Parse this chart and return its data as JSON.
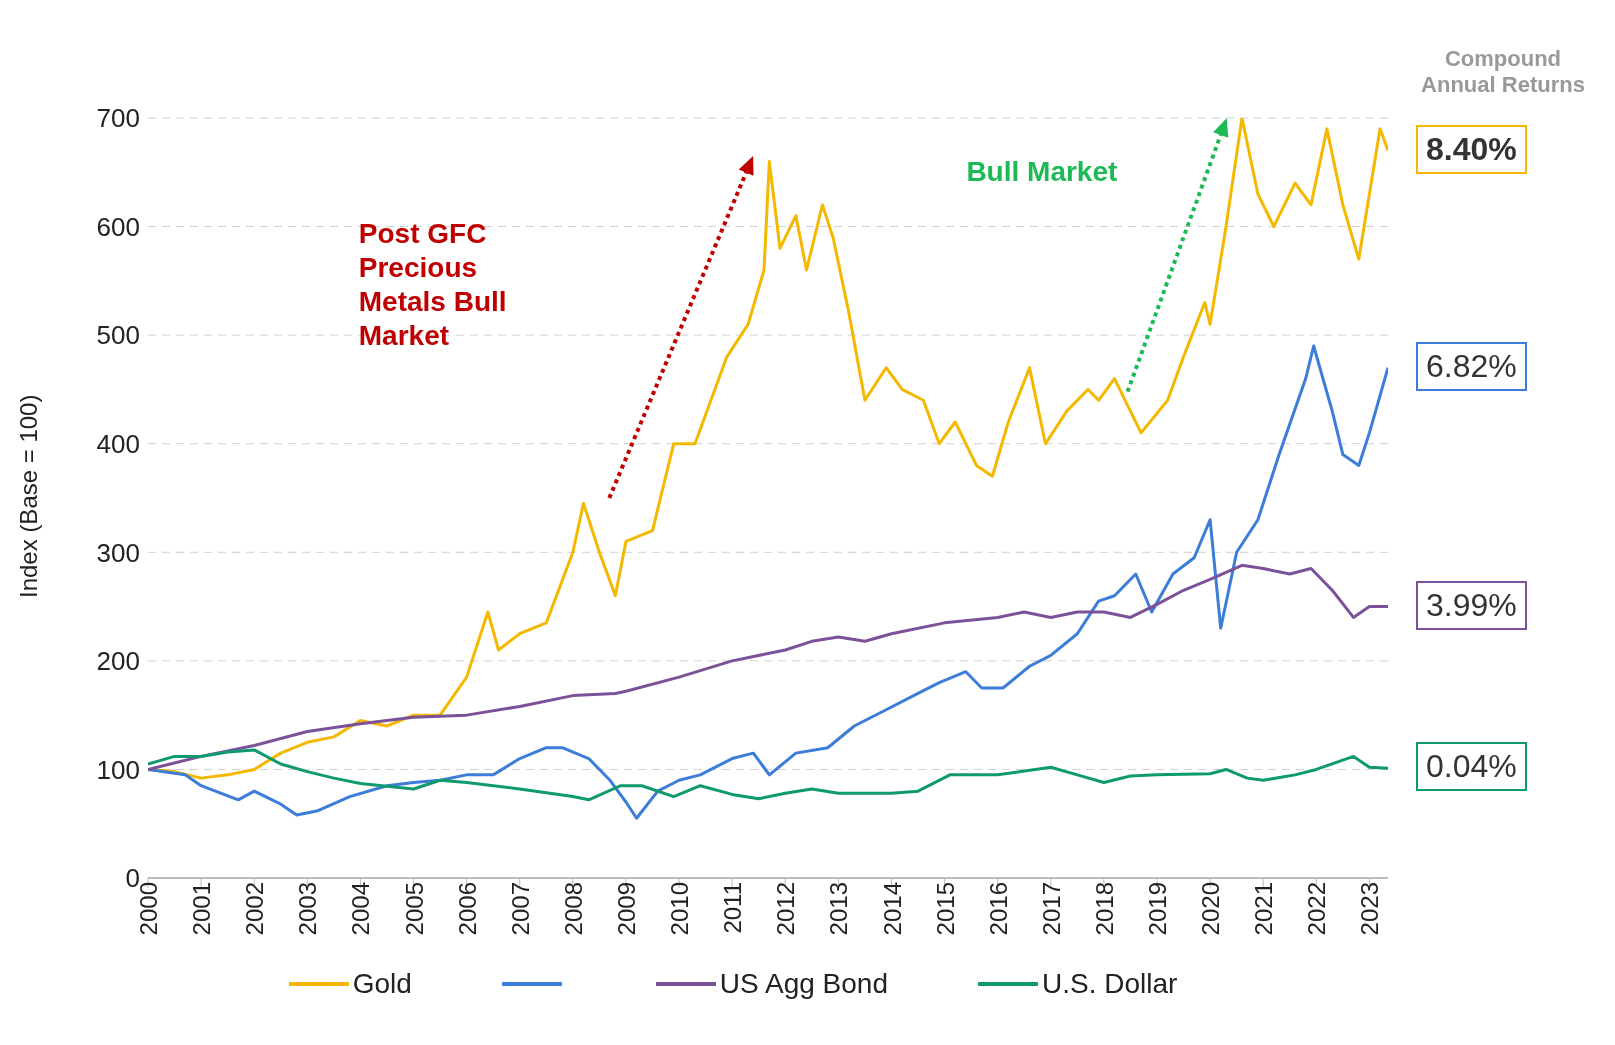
{
  "chart_data": {
    "type": "line",
    "ylabel": "Index (Base = 100)",
    "xlim": [
      2000,
      2023.35
    ],
    "xticks": [
      2000,
      2001,
      2002,
      2003,
      2004,
      2005,
      2006,
      2007,
      2008,
      2009,
      2010,
      2011,
      2012,
      2013,
      2014,
      2015,
      2016,
      2017,
      2018,
      2019,
      2020,
      2021,
      2022,
      2023
    ],
    "ylim": [
      0,
      700
    ],
    "yticks": [
      0,
      100,
      200,
      300,
      400,
      500,
      600,
      700
    ],
    "grid": "y",
    "legend": "bottom",
    "marker": "none",
    "line_style": "solid",
    "annotations": [
      "Compound Annual Returns",
      "8.40%",
      "6.82%",
      "3.99%",
      "0.04%",
      "Post GFC Precious Metals Bull Market",
      "Bull Market"
    ],
    "series": [
      {
        "name": "Gold",
        "color": "#f5b800",
        "x": [
          2000,
          2000.5,
          2001,
          2001.5,
          2002,
          2002.5,
          2003,
          2003.5,
          2004,
          2004.5,
          2005,
          2005.5,
          2006,
          2006.4,
          2006.6,
          2007,
          2007.5,
          2008,
          2008.2,
          2008.5,
          2008.8,
          2009,
          2009.5,
          2009.9,
          2010.3,
          2010.6,
          2010.9,
          2011.3,
          2011.6,
          2011.7,
          2011.9,
          2012.2,
          2012.4,
          2012.7,
          2012.9,
          2013.2,
          2013.5,
          2013.9,
          2014.2,
          2014.6,
          2014.9,
          2015.2,
          2015.6,
          2015.9,
          2016.2,
          2016.6,
          2016.9,
          2017.3,
          2017.7,
          2017.9,
          2018.2,
          2018.4,
          2018.7,
          2019.2,
          2019.5,
          2019.9,
          2020.0,
          2020.3,
          2020.6,
          2020.9,
          2021.2,
          2021.6,
          2021.9,
          2022.2,
          2022.5,
          2022.8,
          2023.0,
          2023.2,
          2023.35
        ],
        "values": [
          100,
          98,
          92,
          95,
          100,
          115,
          125,
          130,
          145,
          140,
          150,
          150,
          185,
          245,
          210,
          225,
          235,
          300,
          345,
          300,
          260,
          310,
          320,
          400,
          400,
          440,
          480,
          510,
          560,
          660,
          580,
          610,
          560,
          620,
          590,
          520,
          440,
          470,
          450,
          440,
          400,
          420,
          380,
          370,
          420,
          470,
          400,
          430,
          450,
          440,
          460,
          440,
          410,
          440,
          480,
          530,
          510,
          600,
          700,
          630,
          600,
          640,
          620,
          690,
          620,
          570,
          630,
          690,
          670
        ]
      },
      {
        "name": null,
        "color": "#3b7dd8",
        "x": [
          2000,
          2000.7,
          2001,
          2001.7,
          2002,
          2002.5,
          2002.8,
          2003.2,
          2003.8,
          2004.5,
          2005,
          2005.5,
          2006,
          2006.5,
          2007,
          2007.5,
          2007.8,
          2008.3,
          2008.7,
          2009.0,
          2009.2,
          2009.6,
          2010,
          2010.4,
          2011,
          2011.4,
          2011.7,
          2012.2,
          2012.8,
          2013.3,
          2013.9,
          2014.5,
          2014.9,
          2015.4,
          2015.7,
          2016.1,
          2016.6,
          2017,
          2017.5,
          2017.9,
          2018.2,
          2018.6,
          2018.9,
          2019.3,
          2019.7,
          2020.0,
          2020.2,
          2020.5,
          2020.9,
          2021.3,
          2021.8,
          2021.95,
          2022.3,
          2022.5,
          2022.8,
          2023.0,
          2023.35
        ],
        "values": [
          100,
          95,
          85,
          72,
          80,
          68,
          58,
          62,
          75,
          85,
          88,
          90,
          95,
          95,
          110,
          120,
          120,
          110,
          90,
          70,
          55,
          80,
          90,
          95,
          110,
          115,
          95,
          115,
          120,
          140,
          155,
          170,
          180,
          190,
          175,
          175,
          195,
          205,
          225,
          255,
          260,
          280,
          245,
          280,
          295,
          330,
          230,
          300,
          330,
          390,
          460,
          490,
          430,
          390,
          380,
          410,
          470
        ]
      },
      {
        "name": "US Agg Bond",
        "color": "#7b5299",
        "x": [
          2000,
          2001,
          2002,
          2003,
          2004,
          2005,
          2006,
          2007,
          2008,
          2008.8,
          2009,
          2010,
          2011,
          2012,
          2012.5,
          2013,
          2013.5,
          2014,
          2015,
          2016,
          2016.5,
          2017,
          2017.5,
          2018,
          2018.5,
          2019,
          2019.5,
          2020,
          2020.6,
          2021,
          2021.5,
          2021.9,
          2022.3,
          2022.7,
          2023,
          2023.35
        ],
        "values": [
          100,
          112,
          122,
          135,
          142,
          148,
          150,
          158,
          168,
          170,
          172,
          185,
          200,
          210,
          218,
          222,
          218,
          225,
          235,
          240,
          245,
          240,
          245,
          245,
          240,
          252,
          265,
          275,
          288,
          285,
          280,
          285,
          265,
          240,
          250,
          250
        ]
      },
      {
        "name": "U.S. Dollar",
        "color": "#0e9a6e",
        "x": [
          2000,
          2000.5,
          2001,
          2001.5,
          2002,
          2002.5,
          2003,
          2003.5,
          2004,
          2005,
          2005.5,
          2006,
          2007,
          2008,
          2008.3,
          2008.9,
          2009.3,
          2009.9,
          2010.4,
          2011,
          2011.5,
          2012,
          2012.5,
          2013,
          2014,
          2014.5,
          2015.1,
          2016,
          2017,
          2017.5,
          2018,
          2018.5,
          2019,
          2020,
          2020.3,
          2020.7,
          2021,
          2021.6,
          2022,
          2022.7,
          2023,
          2023.35
        ],
        "values": [
          105,
          112,
          112,
          116,
          118,
          105,
          98,
          92,
          87,
          82,
          90,
          88,
          82,
          75,
          72,
          85,
          85,
          75,
          85,
          77,
          73,
          78,
          82,
          78,
          78,
          80,
          95,
          95,
          102,
          95,
          88,
          94,
          95,
          96,
          100,
          92,
          90,
          95,
          100,
          112,
          102,
          101
        ]
      }
    ]
  }
}
